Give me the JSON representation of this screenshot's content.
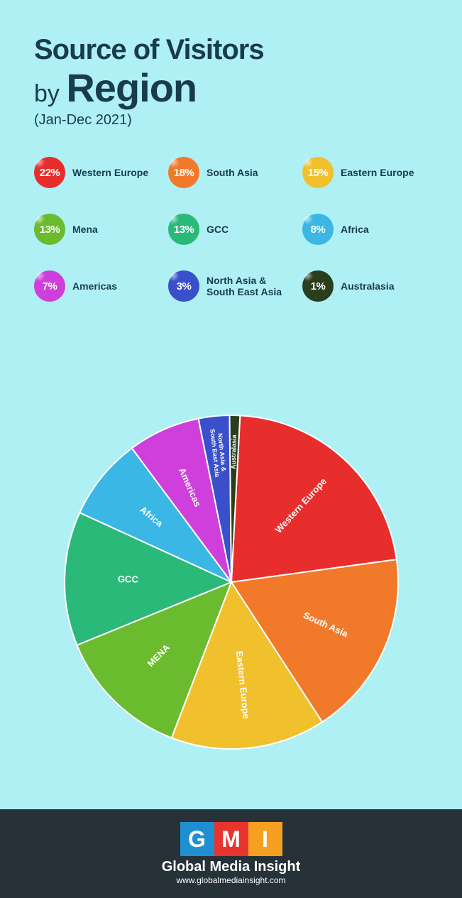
{
  "title": {
    "line1": "Source of Visitors",
    "line2_prefix": "by ",
    "line2_bold": "Region",
    "subtitle": "(Jan-Dec 2021)",
    "color": "#193b4f"
  },
  "background_color": "#aff0f4",
  "pie": {
    "type": "pie",
    "radius": 235,
    "stroke": "#ffffff",
    "stroke_width": 2,
    "start_angle_deg": -87,
    "slices": [
      {
        "label": "Western Europe",
        "value": 22,
        "color": "#e72e2c",
        "legend": "Western Europe"
      },
      {
        "label": "South Asia",
        "value": 18,
        "color": "#f17a2a",
        "legend": "South Asia"
      },
      {
        "label": "Eastern Europe",
        "value": 15,
        "color": "#f1c02d",
        "legend": "Eastern Europe"
      },
      {
        "label": "MENA",
        "value": 13,
        "color": "#6bbb2f",
        "legend": "Mena"
      },
      {
        "label": "GCC",
        "value": 13,
        "color": "#2bb97a",
        "legend": "GCC"
      },
      {
        "label": "Africa",
        "value": 8,
        "color": "#3ab7e4",
        "legend": "Africa"
      },
      {
        "label": "Americas",
        "value": 7,
        "color": "#cf3fdc",
        "legend": "Americas"
      },
      {
        "label": "North Asia & South East Asia",
        "value": 3,
        "color": "#3a4fca",
        "legend": "North Asia & South East Asia",
        "label_lines": [
          "North Asia &",
          "South East Asia"
        ],
        "small": true
      },
      {
        "label": "Australasia",
        "value": 1,
        "color": "#2a3e1e",
        "legend": "Australasia",
        "small": true
      }
    ]
  },
  "footer": {
    "background": "#263238",
    "logo": [
      {
        "letter": "G",
        "bg": "#1f8fd1"
      },
      {
        "letter": "M",
        "bg": "#e7342e"
      },
      {
        "letter": "I",
        "bg": "#f5a021"
      }
    ],
    "name": "Global Media Insight",
    "url": "www.globalmediainsight.com"
  }
}
